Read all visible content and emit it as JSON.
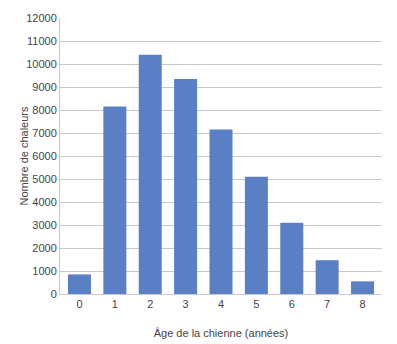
{
  "chart_data": {
    "type": "bar",
    "categories": [
      0,
      1,
      2,
      3,
      4,
      5,
      6,
      7,
      8
    ],
    "values": [
      850,
      8150,
      10400,
      9350,
      7150,
      5100,
      3100,
      1470,
      550
    ],
    "color": "#5b7fc4",
    "xlabel": "Âge de la chienne (années)",
    "ylabel": "Nombre de chaleurs",
    "xlim": [
      -0.55,
      8.55
    ],
    "ylim": [
      0,
      12000
    ],
    "yticks": [
      0,
      1000,
      2000,
      3000,
      4000,
      5000,
      6000,
      7000,
      8000,
      9000,
      10000,
      11000,
      12000
    ],
    "grid": true
  }
}
